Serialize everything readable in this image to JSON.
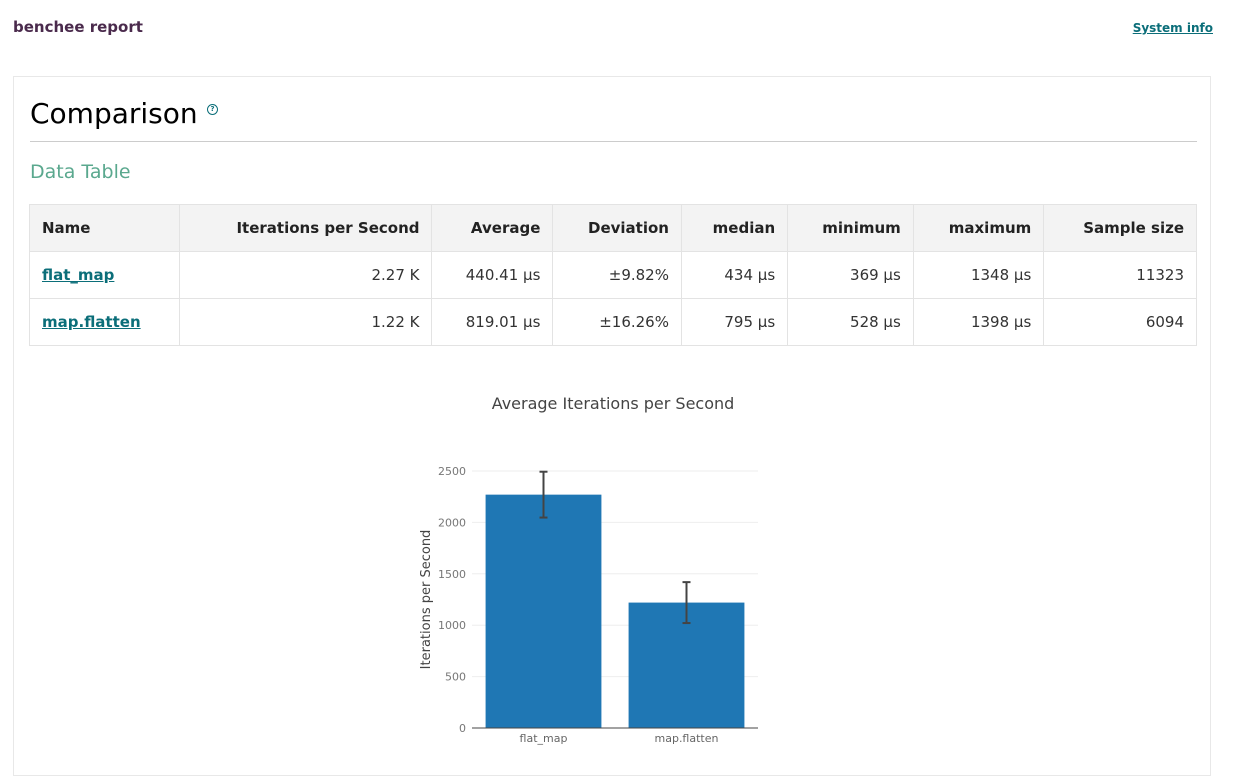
{
  "header": {
    "brand": "benchee report",
    "system_info": "System info"
  },
  "section": {
    "title": "Comparison",
    "help_icon": "question-circle-icon",
    "subtitle": "Data Table"
  },
  "table": {
    "columns": [
      "Name",
      "Iterations per Second",
      "Average",
      "Deviation",
      "median",
      "minimum",
      "maximum",
      "Sample size"
    ],
    "rows": [
      [
        "flat_map",
        "2.27 K",
        "440.41 μs",
        "±9.82%",
        "434 μs",
        "369 μs",
        "1348 μs",
        "11323"
      ],
      [
        "map.flatten",
        "1.22 K",
        "819.01 μs",
        "±16.26%",
        "795 μs",
        "528 μs",
        "1398 μs",
        "6094"
      ]
    ]
  },
  "chart_data": {
    "type": "bar",
    "title": "Average Iterations per Second",
    "xlabel": "",
    "ylabel": "Iterations per Second",
    "categories": [
      "flat_map",
      "map.flatten"
    ],
    "values": [
      2270,
      1220
    ],
    "error": [
      223,
      199
    ],
    "ylim": [
      0,
      2500
    ],
    "yticks": [
      "0",
      "500",
      "1000",
      "1500",
      "2000",
      "2500"
    ],
    "grid": true,
    "color": "#1f77b4"
  }
}
